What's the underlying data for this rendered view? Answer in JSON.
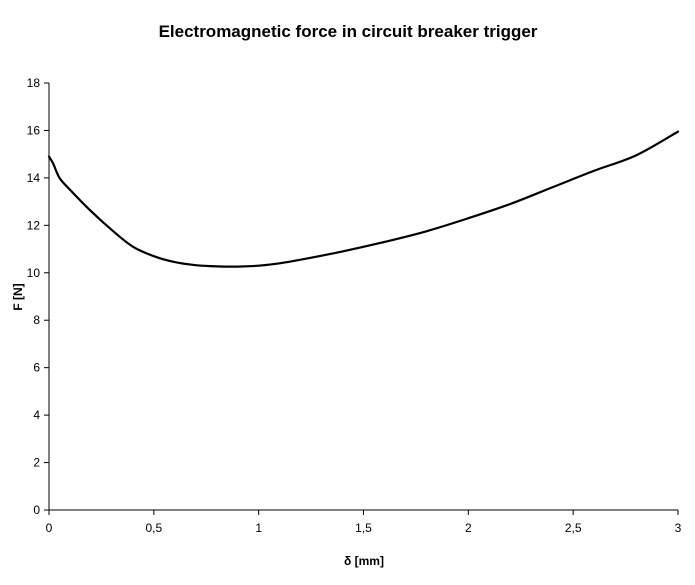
{
  "chart_data": {
    "type": "line",
    "title": "Electromagnetic force in circuit breaker trigger",
    "xlabel": "δ [mm]",
    "ylabel": "F [N]",
    "xlim": [
      0,
      3
    ],
    "ylim": [
      0,
      18
    ],
    "x_ticks": [
      0,
      0.5,
      1,
      1.5,
      2,
      2.5,
      3
    ],
    "x_tick_labels": [
      "0",
      "0,5",
      "1",
      "1,5",
      "2",
      "2,5",
      "3"
    ],
    "y_ticks": [
      0,
      2,
      4,
      6,
      8,
      10,
      12,
      14,
      16,
      18
    ],
    "y_tick_labels": [
      "0",
      "2",
      "4",
      "6",
      "8",
      "10",
      "12",
      "14",
      "16",
      "18"
    ],
    "grid": false,
    "legend": "none",
    "series": [
      {
        "color": "#000000",
        "x": [
          0,
          0.02,
          0.05,
          0.1,
          0.2,
          0.3,
          0.4,
          0.5,
          0.6,
          0.7,
          0.8,
          0.9,
          1.0,
          1.1,
          1.2,
          1.4,
          1.6,
          1.8,
          2.0,
          2.2,
          2.4,
          2.6,
          2.8,
          3.0
        ],
        "y": [
          14.9,
          14.6,
          14.0,
          13.5,
          12.6,
          11.8,
          11.1,
          10.7,
          10.45,
          10.32,
          10.27,
          10.26,
          10.3,
          10.4,
          10.55,
          10.9,
          11.3,
          11.75,
          12.3,
          12.9,
          13.6,
          14.3,
          14.95,
          15.95
        ]
      }
    ]
  }
}
